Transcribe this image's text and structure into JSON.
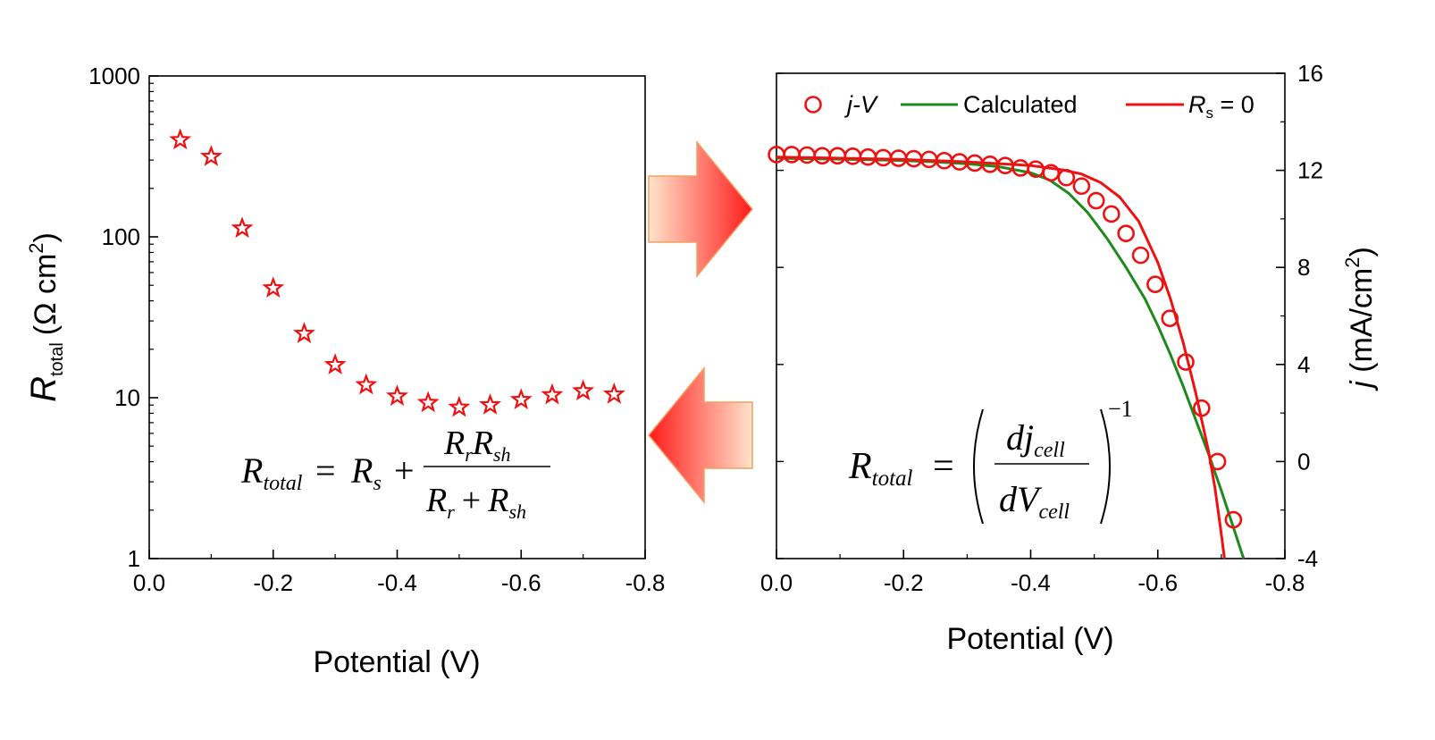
{
  "chart_data": [
    {
      "type": "scatter",
      "xlabel": "Potential (V)",
      "ylabel_main": "R",
      "ylabel_sub": "total",
      "ylabel_unit": "(Ω cm",
      "ylabel_sup": "2",
      "ylabel_close": ")",
      "xlim": [
        0.0,
        -0.8
      ],
      "ylim": [
        1,
        1000
      ],
      "yscale": "log",
      "xticks": [
        0.0,
        -0.2,
        -0.4,
        -0.6,
        -0.8
      ],
      "xtick_labels": [
        "0.0",
        "-0.2",
        "-0.4",
        "-0.6",
        "-0.8"
      ],
      "yticks": [
        1,
        10,
        100,
        1000
      ],
      "ytick_labels": [
        "1",
        "10",
        "100",
        "1000"
      ],
      "marker": "star",
      "color": "#ee1111",
      "series": [
        {
          "x": [
            -0.05,
            -0.1,
            -0.15,
            -0.2,
            -0.25,
            -0.3,
            -0.35,
            -0.4,
            -0.45,
            -0.5,
            -0.55,
            -0.6,
            -0.65,
            -0.7,
            -0.75
          ],
          "values": [
            400,
            315,
            113,
            48,
            25,
            16,
            12,
            10.2,
            9.3,
            8.7,
            9.0,
            9.7,
            10.4,
            11.0,
            10.5
          ]
        }
      ],
      "equation": {
        "lhs": "R",
        "lhs_sub": "total",
        "eq": "=",
        "r1": "R",
        "r1_sub": "s",
        "plus": "+",
        "num_a": "R",
        "num_a_sub": "r",
        "num_b": "R",
        "num_b_sub": "sh",
        "den_a": "R",
        "den_a_sub": "r",
        "den_plus": "+",
        "den_b": "R",
        "den_b_sub": "sh"
      }
    },
    {
      "type": "line",
      "xlabel": "Potential (V)",
      "ylabel_main": "j",
      "ylabel_unit": " (mA/cm",
      "ylabel_sup": "2",
      "ylabel_close": ")",
      "xlim": [
        0.0,
        -0.8
      ],
      "ylim": [
        -4,
        16
      ],
      "xticks": [
        0.0,
        -0.2,
        -0.4,
        -0.6,
        -0.8
      ],
      "xtick_labels": [
        "0.0",
        "-0.2",
        "-0.4",
        "-0.6",
        "-0.8"
      ],
      "yticks": [
        -4,
        0,
        4,
        8,
        12,
        16
      ],
      "ytick_labels": [
        "-4",
        "0",
        "4",
        "8",
        "12",
        "16"
      ],
      "legend_position": "top",
      "series": [
        {
          "name": "j-V",
          "kind": "markers",
          "marker": "circle",
          "color": "#ee1111",
          "x": [
            -0.0,
            -0.024,
            -0.048,
            -0.072,
            -0.096,
            -0.12,
            -0.144,
            -0.168,
            -0.192,
            -0.216,
            -0.24,
            -0.264,
            -0.288,
            -0.312,
            -0.336,
            -0.36,
            -0.384,
            -0.408,
            -0.432,
            -0.456,
            -0.48,
            -0.503,
            -0.527,
            -0.55,
            -0.573,
            -0.596,
            -0.619,
            -0.644,
            -0.669,
            -0.694,
            -0.719
          ],
          "values": [
            12.65,
            12.65,
            12.63,
            12.6,
            12.6,
            12.58,
            12.55,
            12.52,
            12.5,
            12.48,
            12.45,
            12.4,
            12.35,
            12.3,
            12.25,
            12.2,
            12.1,
            12.05,
            11.9,
            11.7,
            11.35,
            10.75,
            10.2,
            9.4,
            8.5,
            7.3,
            5.9,
            4.1,
            2.2,
            0.0,
            -2.4
          ]
        },
        {
          "name": "Calculated",
          "kind": "line",
          "color": "#1e8a1e",
          "x": [
            0.0,
            -0.05,
            -0.1,
            -0.15,
            -0.2,
            -0.25,
            -0.3,
            -0.35,
            -0.4,
            -0.43,
            -0.46,
            -0.49,
            -0.52,
            -0.55,
            -0.58,
            -0.6,
            -0.62,
            -0.64,
            -0.66,
            -0.68,
            -0.7,
            -0.72,
            -0.735
          ],
          "values": [
            12.5,
            12.48,
            12.46,
            12.44,
            12.4,
            12.35,
            12.27,
            12.15,
            11.9,
            11.6,
            11.05,
            10.25,
            9.2,
            8.0,
            6.7,
            5.6,
            4.4,
            3.1,
            1.7,
            0.3,
            -1.2,
            -2.8,
            -4.0
          ]
        },
        {
          "name": "R_s = 0",
          "legend_main": "R",
          "legend_sub": "s",
          "legend_rest": " = 0",
          "kind": "line",
          "color": "#ee1111",
          "x": [
            0.0,
            -0.1,
            -0.2,
            -0.3,
            -0.4,
            -0.45,
            -0.48,
            -0.51,
            -0.54,
            -0.57,
            -0.6,
            -0.62,
            -0.64,
            -0.66,
            -0.68,
            -0.69,
            -0.7,
            -0.705
          ],
          "values": [
            12.55,
            12.5,
            12.45,
            12.35,
            12.2,
            12.02,
            11.85,
            11.5,
            10.9,
            9.9,
            8.2,
            6.7,
            4.9,
            2.8,
            0.4,
            -1.1,
            -3.0,
            -4.0
          ]
        }
      ],
      "equation": {
        "lhs": "R",
        "lhs_sub": "total",
        "eq": "=",
        "num": "dj",
        "num_sub": "cell",
        "den": "dV",
        "den_sub": "cell",
        "exp": "−1"
      }
    }
  ],
  "arrows": {
    "upper_direction": "right",
    "lower_direction": "left"
  }
}
